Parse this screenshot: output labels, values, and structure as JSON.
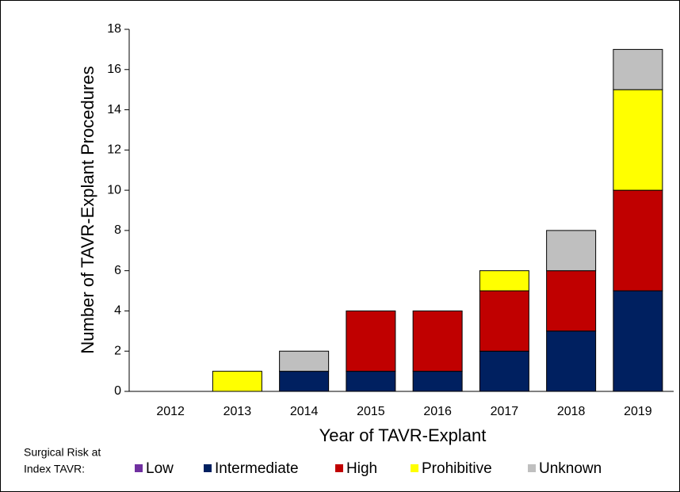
{
  "chart_data": {
    "type": "stacked_bar",
    "categories": [
      "2012",
      "2013",
      "2014",
      "2015",
      "2016",
      "2017",
      "2018",
      "2019"
    ],
    "series": [
      {
        "name": "Low",
        "color": "#7030a0",
        "values": [
          0,
          0,
          0,
          0,
          0,
          0,
          0,
          0
        ]
      },
      {
        "name": "Intermediate",
        "color": "#002060",
        "values": [
          0,
          0,
          1,
          1,
          1,
          2,
          3,
          5
        ]
      },
      {
        "name": "High",
        "color": "#c00000",
        "values": [
          0,
          0,
          0,
          3,
          3,
          3,
          3,
          5
        ]
      },
      {
        "name": "Prohibitive",
        "color": "#ffff00",
        "values": [
          0,
          1,
          0,
          0,
          0,
          1,
          0,
          5
        ]
      },
      {
        "name": "Unknown",
        "color": "#bfbfbf",
        "values": [
          0,
          0,
          1,
          0,
          0,
          0,
          2,
          2
        ]
      }
    ],
    "ylim": [
      0,
      18
    ],
    "yticks": [
      0,
      2,
      4,
      6,
      8,
      10,
      12,
      14,
      16,
      18
    ],
    "y_label": "Number of TAVR-Explant Procedures",
    "x_label": "Year of TAVR-Explant",
    "legend_title": [
      "Surgical Risk at",
      "Index TAVR:"
    ]
  }
}
